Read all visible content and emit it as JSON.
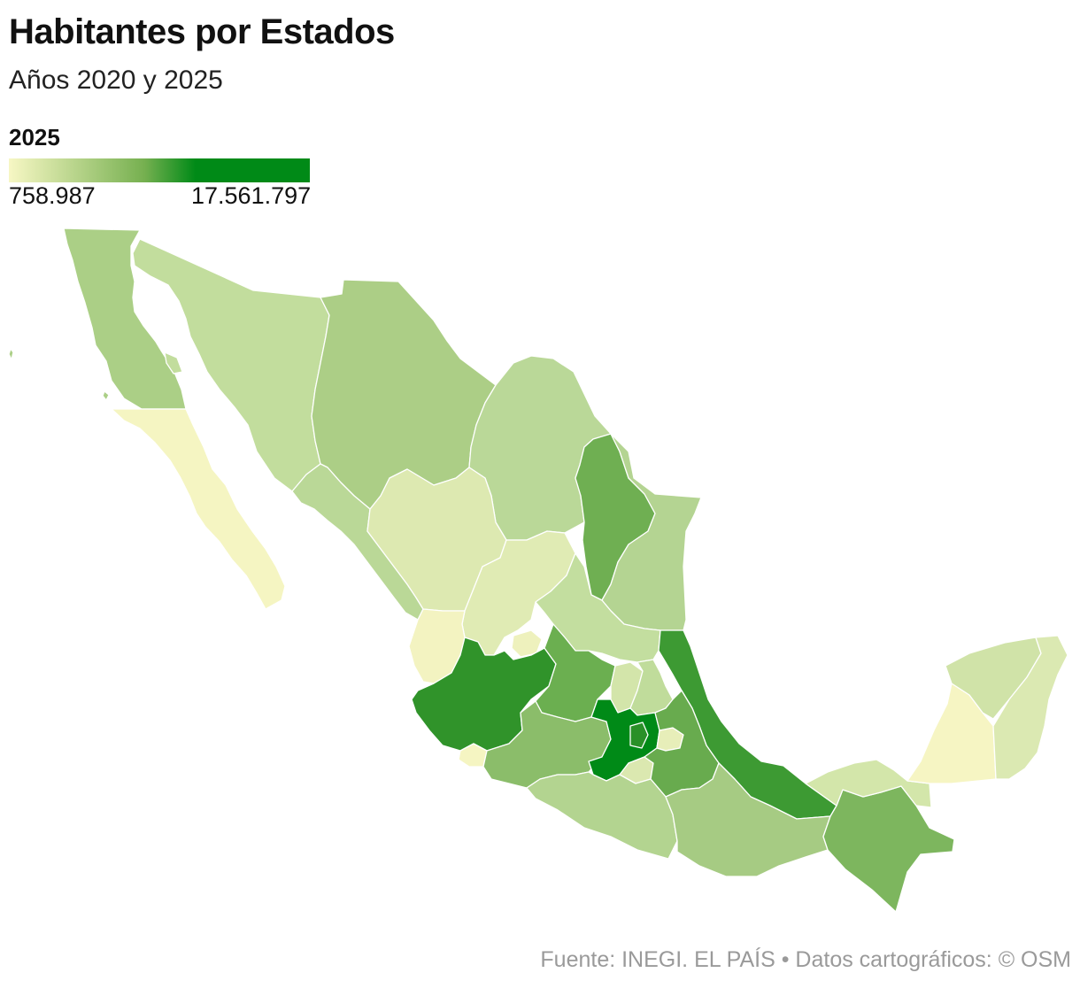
{
  "header": {
    "title": "Habitantes por Estados",
    "subtitle": "Años 2020 y 2025"
  },
  "legend": {
    "year": "2025",
    "min_label": "758.987",
    "max_label": "17.561.797",
    "color_low": "#f7f7c4",
    "color_mid": "#76b050",
    "color_high": "#008a17"
  },
  "source": "Fuente: INEGI. EL PAÍS  • Datos cartográficos: © OSM",
  "map": {
    "country": "México",
    "states": [
      {
        "name": "Baja California",
        "color": "#abcf86"
      },
      {
        "name": "Baja California Sur",
        "color": "#f5f5c2"
      },
      {
        "name": "Sonora",
        "color": "#c2dd9d"
      },
      {
        "name": "Chihuahua",
        "color": "#acce86"
      },
      {
        "name": "Coahuila",
        "color": "#bad898"
      },
      {
        "name": "Nuevo León",
        "color": "#6faf52"
      },
      {
        "name": "Tamaulipas",
        "color": "#b4d492"
      },
      {
        "name": "Sinaloa",
        "color": "#bad897"
      },
      {
        "name": "Durango",
        "color": "#dde9b1"
      },
      {
        "name": "Zacatecas",
        "color": "#e0ebb4"
      },
      {
        "name": "San Luis Potosí",
        "color": "#c3de9f"
      },
      {
        "name": "Nayarit",
        "color": "#f3f3c1"
      },
      {
        "name": "Aguascalientes",
        "color": "#eef1bd"
      },
      {
        "name": "Jalisco",
        "color": "#30932a"
      },
      {
        "name": "Guanajuato",
        "color": "#6baf50"
      },
      {
        "name": "Querétaro",
        "color": "#d3e5aa"
      },
      {
        "name": "Hidalgo",
        "color": "#c0dc9b"
      },
      {
        "name": "Veracruz",
        "color": "#3d9a33"
      },
      {
        "name": "Colima",
        "color": "#f5f5c2"
      },
      {
        "name": "Michoacán",
        "color": "#8bbd6a"
      },
      {
        "name": "Estado de México",
        "color": "#008a17"
      },
      {
        "name": "Ciudad de México",
        "color": "#2a9028"
      },
      {
        "name": "Morelos",
        "color": "#dbe8b0"
      },
      {
        "name": "Tlaxcala",
        "color": "#e7eeb9"
      },
      {
        "name": "Puebla",
        "color": "#68ab4e"
      },
      {
        "name": "Guerrero",
        "color": "#b3d490"
      },
      {
        "name": "Oaxaca",
        "color": "#a6cb83"
      },
      {
        "name": "Chiapas",
        "color": "#7db65e"
      },
      {
        "name": "Tabasco",
        "color": "#d3e6aa"
      },
      {
        "name": "Campeche",
        "color": "#f6f5c3"
      },
      {
        "name": "Yucatán",
        "color": "#d0e3a8"
      },
      {
        "name": "Quintana Roo",
        "color": "#dbe9b2"
      }
    ]
  }
}
